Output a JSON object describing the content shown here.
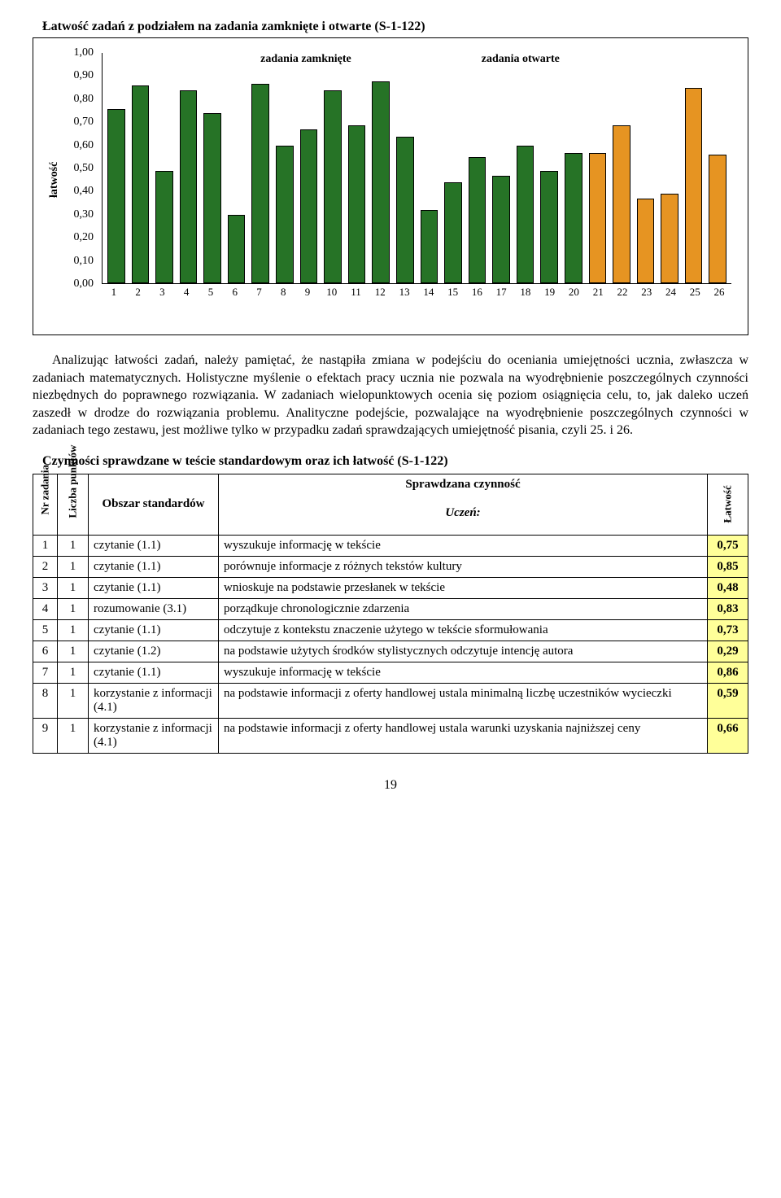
{
  "chart": {
    "title": "Łatwość zadań z podziałem na zadania zamknięte i otwarte (S-1-122)",
    "type": "bar",
    "ylabel": "łatwość",
    "ylim": [
      0,
      1.0
    ],
    "ytick_step": 0.1,
    "yticks": [
      "1,00",
      "0,90",
      "0,80",
      "0,70",
      "0,60",
      "0,50",
      "0,40",
      "0,30",
      "0,20",
      "0,10",
      "0,00"
    ],
    "xticks": [
      "1",
      "2",
      "3",
      "4",
      "5",
      "6",
      "7",
      "8",
      "9",
      "10",
      "11",
      "12",
      "13",
      "14",
      "15",
      "16",
      "17",
      "18",
      "19",
      "20",
      "21",
      "22",
      "23",
      "24",
      "25",
      "26"
    ],
    "values": [
      0.75,
      0.85,
      0.48,
      0.83,
      0.73,
      0.29,
      0.86,
      0.59,
      0.66,
      0.83,
      0.68,
      0.87,
      0.63,
      0.31,
      0.43,
      0.54,
      0.46,
      0.59,
      0.48,
      0.56,
      0.56,
      0.68,
      0.36,
      0.38,
      0.84,
      0.55
    ],
    "series_colors": [
      "#267326",
      "#267326",
      "#267326",
      "#267326",
      "#267326",
      "#267326",
      "#267326",
      "#267326",
      "#267326",
      "#267326",
      "#267326",
      "#267326",
      "#267326",
      "#267326",
      "#267326",
      "#267326",
      "#267326",
      "#267326",
      "#267326",
      "#267326",
      "#e69422",
      "#e69422",
      "#e69422",
      "#e69422",
      "#e69422",
      "#e69422"
    ],
    "bar_border": "#000000",
    "legend": {
      "closed": "zadania zamknięte",
      "open": "zadania otwarte"
    }
  },
  "paragraph": "Analizując łatwości zadań, należy pamiętać, że nastąpiła zmiana w podejściu do oceniania umiejętności ucznia, zwłaszcza w zadaniach matematycznych. Holistyczne myślenie o efektach pracy ucznia nie pozwala na wyodrębnienie poszczególnych czynności niezbędnych do poprawnego rozwiązania. W zadaniach wielopunktowych ocenia się poziom osiągnięcia celu, to, jak daleko uczeń zaszedł w drodze do rozwiązania problemu. Analityczne podejście, pozwalające na wyodrębnienie poszczególnych czynności w zadaniach tego zestawu, jest możliwe tylko w przypadku zadań sprawdzających umiejętność pisania, czyli 25. i 26.",
  "table": {
    "title": "Czynności sprawdzane w teście standardowym oraz ich łatwość (S-1-122)",
    "headers": {
      "nr": "Nr zadania",
      "liczba": "Liczba punktów",
      "obszar": "Obszar standardów",
      "czynnosc_top": "Sprawdzana czynność",
      "czynnosc_sub": "Uczeń:",
      "latwosc": "Łatwość"
    },
    "rows": [
      {
        "nr": "1",
        "lp": "1",
        "obszar": "czytanie (1.1)",
        "czynnosc": "wyszukuje informację w tekście",
        "latwosc": "0,75"
      },
      {
        "nr": "2",
        "lp": "1",
        "obszar": "czytanie (1.1)",
        "czynnosc": "porównuje informacje z różnych tekstów kultury",
        "latwosc": "0,85"
      },
      {
        "nr": "3",
        "lp": "1",
        "obszar": "czytanie (1.1)",
        "czynnosc": "wnioskuje na podstawie przesłanek w tekście",
        "latwosc": "0,48"
      },
      {
        "nr": "4",
        "lp": "1",
        "obszar": "rozumowanie (3.1)",
        "czynnosc": "porządkuje chronologicznie zdarzenia",
        "latwosc": "0,83"
      },
      {
        "nr": "5",
        "lp": "1",
        "obszar": "czytanie (1.1)",
        "czynnosc": "odczytuje z kontekstu znaczenie użytego w tekście sformułowania",
        "latwosc": "0,73"
      },
      {
        "nr": "6",
        "lp": "1",
        "obszar": "czytanie (1.2)",
        "czynnosc": "na podstawie użytych środków stylistycznych odczytuje intencję autora",
        "latwosc": "0,29"
      },
      {
        "nr": "7",
        "lp": "1",
        "obszar": "czytanie (1.1)",
        "czynnosc": "wyszukuje informację w tekście",
        "latwosc": "0,86"
      },
      {
        "nr": "8",
        "lp": "1",
        "obszar": "korzystanie z informacji (4.1)",
        "czynnosc": "na podstawie informacji z oferty handlowej ustala minimalną liczbę uczestników wycieczki",
        "latwosc": "0,59"
      },
      {
        "nr": "9",
        "lp": "1",
        "obszar": "korzystanie z informacji (4.1)",
        "czynnosc": "na podstawie informacji z oferty handlowej ustala warunki uzyskania najniższej ceny",
        "latwosc": "0,66"
      }
    ]
  },
  "pagenum": "19"
}
